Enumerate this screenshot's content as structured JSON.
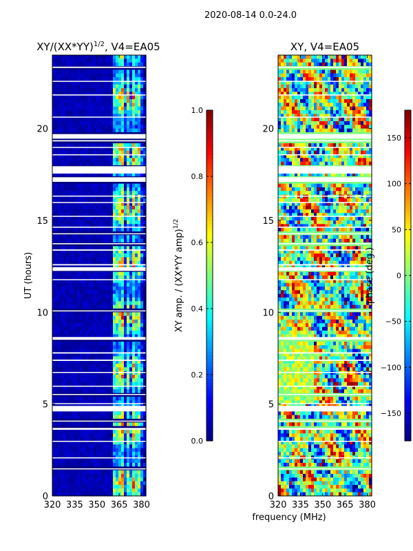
{
  "suptitle": "2020-08-14 0.0-24.0",
  "shared_xlabel": "frequency (MHz)",
  "chart_data": [
    {
      "type": "heatmap",
      "title_main": "XY/(XX*YY)",
      "title_sup": "1/2",
      "title_suffix": ", V4=EA05",
      "ylabel": "UT (hours)",
      "xlim": [
        320,
        383
      ],
      "ylim": [
        0,
        24
      ],
      "xticks": [
        320,
        335,
        350,
        365,
        380
      ],
      "yticks": [
        0,
        5,
        10,
        15,
        20
      ],
      "colormap": "jet",
      "colorbar": {
        "label_main": "XY amp. / (XX*YY amp)",
        "label_sup": "1/2",
        "range": [
          0.0,
          1.0
        ],
        "ticks": [
          "0.0",
          "0.2",
          "0.4",
          "0.6",
          "0.8",
          "1.0"
        ]
      }
    },
    {
      "type": "heatmap",
      "title_main": "XY, V4=EA05",
      "xlim": [
        320,
        383
      ],
      "ylim": [
        0,
        24
      ],
      "xticks": [
        320,
        335,
        350,
        365,
        380
      ],
      "yticks": [
        0,
        5,
        10,
        15,
        20
      ],
      "colormap": "jet",
      "colorbar": {
        "label_main": "phase (deg.)",
        "range": [
          -180,
          180
        ],
        "ticks": [
          "−150",
          "−100",
          "−50",
          "0",
          "50",
          "100",
          "150"
        ]
      }
    }
  ],
  "data_gaps_ut_hours": [
    [
      23.3,
      23.37
    ],
    [
      22.55,
      22.6
    ],
    [
      21.8,
      21.86
    ],
    [
      20.6,
      20.65
    ],
    [
      19.45,
      19.7
    ],
    [
      19.3,
      19.37
    ],
    [
      18.95,
      19.0
    ],
    [
      18.55,
      18.6
    ],
    [
      17.55,
      17.95
    ],
    [
      17.1,
      17.35
    ],
    [
      16.3,
      16.35
    ],
    [
      15.95,
      16.0
    ],
    [
      15.2,
      15.25
    ],
    [
      14.6,
      14.66
    ],
    [
      14.25,
      14.3
    ],
    [
      13.7,
      13.76
    ],
    [
      13.35,
      13.42
    ],
    [
      12.55,
      12.62
    ],
    [
      12.25,
      12.45
    ],
    [
      11.75,
      11.8
    ],
    [
      10.05,
      10.1
    ],
    [
      8.5,
      8.65
    ],
    [
      7.75,
      7.82
    ],
    [
      7.35,
      7.42
    ],
    [
      6.7,
      6.75
    ],
    [
      5.95,
      6.0
    ],
    [
      5.5,
      5.55
    ],
    [
      5.0,
      5.05
    ],
    [
      4.6,
      4.9
    ],
    [
      4.05,
      4.1
    ],
    [
      3.6,
      3.7
    ],
    [
      2.95,
      3.0
    ],
    [
      2.05,
      2.1
    ],
    [
      1.45,
      1.5
    ]
  ]
}
